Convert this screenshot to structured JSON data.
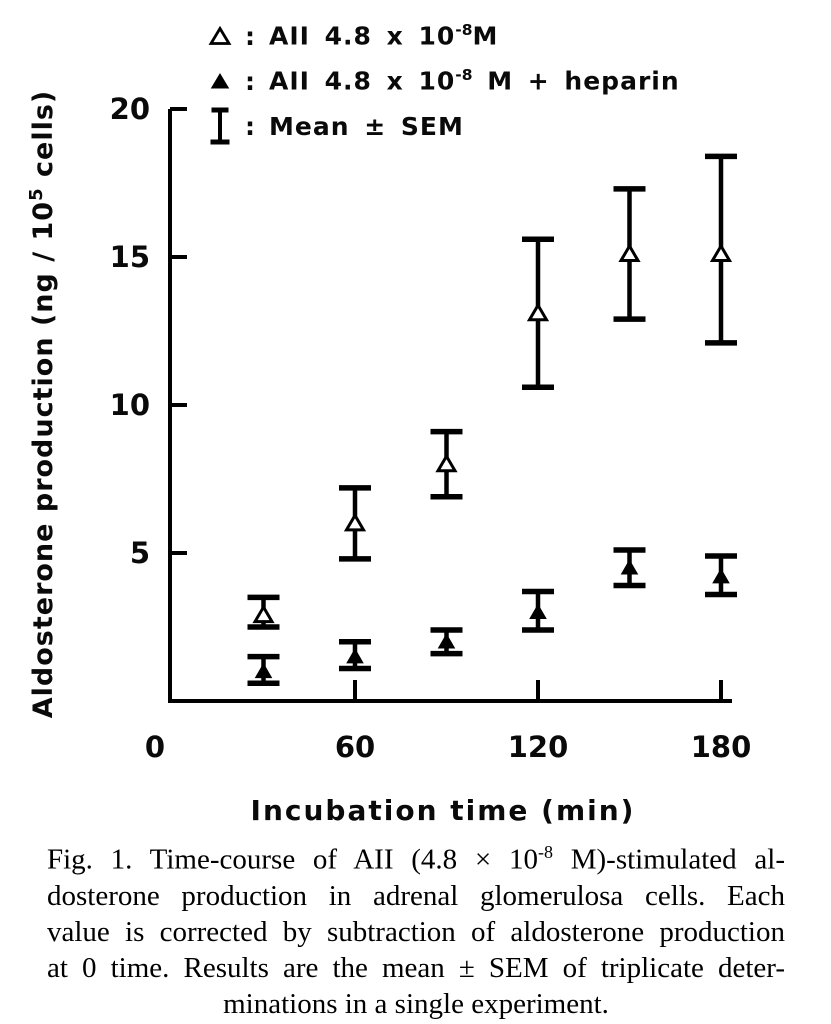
{
  "legend": {
    "items": [
      {
        "symbol": "open-triangle-icon",
        "colon": ":",
        "base": "AII 4.8 x 10",
        "exp": "-8",
        "tail": "M"
      },
      {
        "symbol": "filled-triangle-icon",
        "colon": ":",
        "base": "AII 4.8 x 10",
        "exp": "-8",
        "tail": " M + heparin"
      },
      {
        "symbol": "error-bar-icon",
        "colon": ":",
        "label": "Mean ± SEM"
      }
    ]
  },
  "chart_data": {
    "type": "scatter",
    "x": [
      30,
      60,
      90,
      120,
      150,
      180
    ],
    "xticks": [
      0,
      60,
      120,
      180
    ],
    "yticks": [
      0,
      5,
      10,
      15,
      20
    ],
    "xlim": [
      0,
      190
    ],
    "ylim": [
      0,
      20
    ],
    "grid": false,
    "legend_position": "top-left",
    "xlabel": "Incubation time (min)",
    "ylabel": "Aldosterone production (ng / 10^5 cells)",
    "ylabel_parts": {
      "base": "Aldosterone production (ng / 10",
      "sup": "5",
      "tail": " cells)"
    },
    "series": [
      {
        "name": "AII 4.8 x 10^-8 M",
        "marker": "open-triangle",
        "means": [
          2.9,
          6.0,
          8.0,
          13.1,
          15.1,
          15.1
        ],
        "err_lo": [
          2.5,
          4.8,
          6.9,
          10.6,
          12.9,
          12.1
        ],
        "err_hi": [
          3.5,
          7.2,
          9.1,
          15.6,
          17.3,
          18.4
        ]
      },
      {
        "name": "AII 4.8 x 10^-8 M + heparin",
        "marker": "filled-triangle",
        "means": [
          1.0,
          1.5,
          2.0,
          3.0,
          4.5,
          4.2
        ],
        "err_lo": [
          0.6,
          1.1,
          1.6,
          2.4,
          3.9,
          3.6
        ],
        "err_hi": [
          1.5,
          2.0,
          2.4,
          3.7,
          5.1,
          4.9
        ]
      }
    ],
    "error_bar_label": "Mean ± SEM"
  },
  "caption": {
    "line1_base": "Fig. 1. Time-course of AII (4.8 × 10",
    "line1_exp": "-8",
    "line1_tail": " M)-stimulated al-",
    "line2": "dosterone production in adrenal glomerulosa cells. Each",
    "line3": "value is corrected by subtraction of aldosterone production",
    "line4": "at 0 time. Results are the mean ± SEM of triplicate deter-",
    "line5": "minations in a single experiment."
  }
}
